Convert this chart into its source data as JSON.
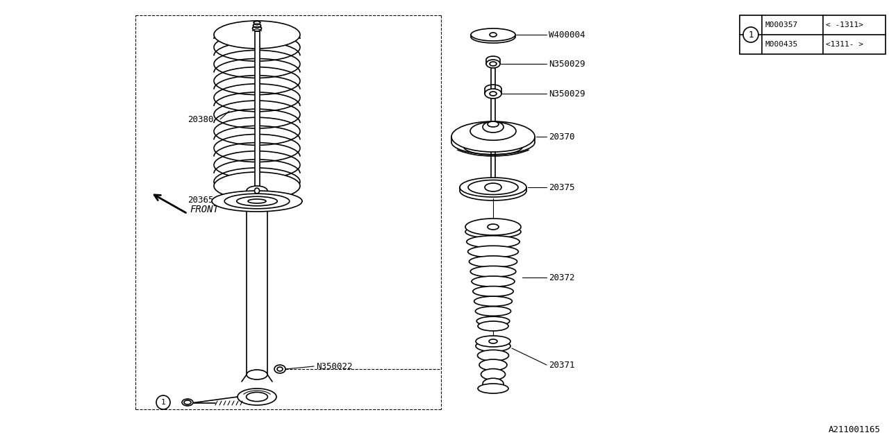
{
  "bg_color": "#ffffff",
  "line_color": "#000000",
  "title_bottom_right": "A211001165",
  "parts_table": {
    "rows": [
      {
        "part": "M000357",
        "range": "< -1311>"
      },
      {
        "part": "M000435",
        "range": "<1311- >"
      }
    ]
  }
}
